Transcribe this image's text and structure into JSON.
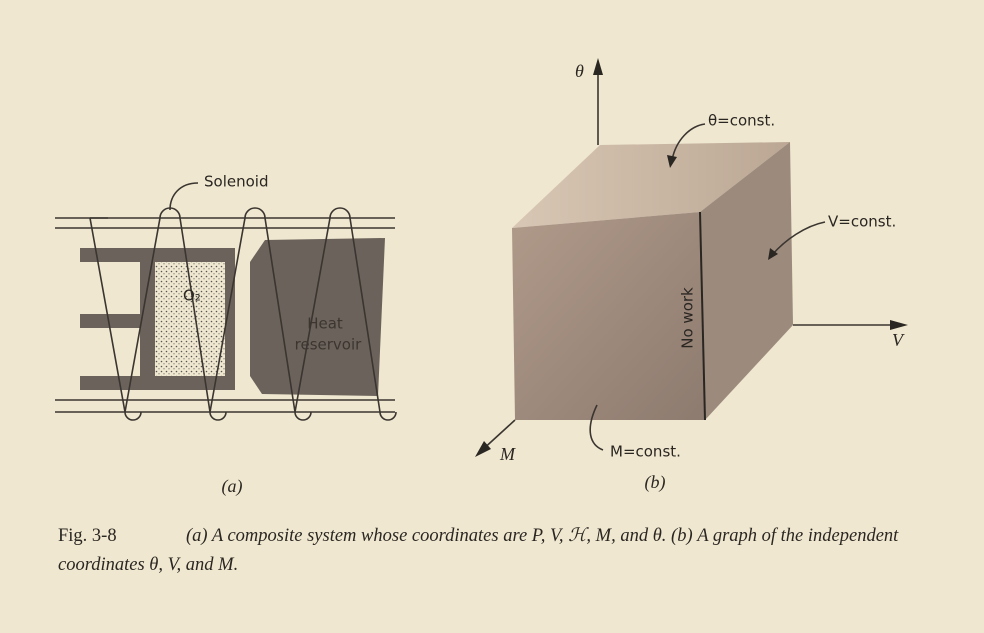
{
  "figure": {
    "panel_a": {
      "solenoid_label": "Solenoid",
      "gas_label": "O₂",
      "reservoir_label": [
        "Heat",
        "reservoir"
      ],
      "panel_label": "(a)"
    },
    "panel_b": {
      "theta_axis": "θ",
      "v_axis": "V",
      "m_axis": "M",
      "theta_const": "θ=const.",
      "v_const": "V=const.",
      "m_const": "M=const.",
      "face_label": "No work",
      "panel_label": "(b)"
    },
    "caption": {
      "number": "Fig. 3-8",
      "text": "(a) A composite system whose coordinates are P, V, ℋ, M, and θ. (b) A graph of the independent coordinates θ, V, and M."
    }
  }
}
